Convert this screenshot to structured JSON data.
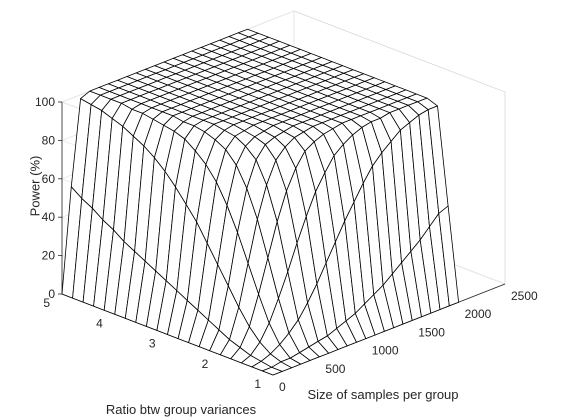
{
  "chart_data": {
    "type": "surface",
    "title": "",
    "xlabel": "Size of samples per group",
    "ylabel": "Ratio btw group variances",
    "zlabel": "Power (%)",
    "xlim": [
      0,
      2500
    ],
    "ylim": [
      1,
      5
    ],
    "zlim": [
      0,
      100
    ],
    "xticks": [
      "0",
      "500",
      "1000",
      "1500",
      "2000",
      "2500"
    ],
    "yticks": [
      "1",
      "2",
      "3",
      "4",
      "5"
    ],
    "zticks": [
      "0",
      "20",
      "40",
      "60",
      "80",
      "100"
    ],
    "grid": true,
    "surface_color": "#ffffff",
    "mesh_color": "#000000",
    "x": [
      0,
      100,
      200,
      300,
      400,
      500,
      600,
      700,
      800,
      900,
      1000,
      1100,
      1200,
      1300,
      1400,
      1500,
      1600,
      1700,
      1800,
      1900,
      2000
    ],
    "y": [
      1.0,
      1.2,
      1.4,
      1.6,
      1.8,
      2.0,
      2.2,
      2.4,
      2.6,
      2.8,
      3.0,
      3.2,
      3.4,
      3.6,
      3.8,
      4.0,
      4.2,
      4.4,
      4.6,
      4.8,
      5.0
    ],
    "z": [
      [
        0,
        0,
        0,
        0,
        0,
        0,
        0,
        0,
        0,
        0,
        0,
        0,
        0,
        0,
        0,
        0,
        0,
        0,
        0,
        0,
        0
      ],
      [
        0,
        0,
        1,
        1,
        2,
        3,
        4,
        5,
        7,
        9,
        11,
        14,
        17,
        20,
        24,
        28,
        32,
        36,
        41,
        46,
        48
      ],
      [
        0,
        1,
        3,
        6,
        10,
        15,
        22,
        30,
        39,
        48,
        57,
        65,
        73,
        80,
        85,
        89,
        93,
        95,
        97,
        98,
        98
      ],
      [
        0,
        2,
        7,
        15,
        26,
        38,
        51,
        63,
        74,
        82,
        89,
        93,
        96,
        98,
        99,
        99,
        100,
        100,
        100,
        100,
        100
      ],
      [
        0,
        4,
        13,
        28,
        45,
        62,
        76,
        86,
        93,
        96,
        98,
        99,
        100,
        100,
        100,
        100,
        100,
        100,
        100,
        100,
        100
      ],
      [
        0,
        6,
        21,
        42,
        63,
        79,
        90,
        95,
        98,
        99,
        100,
        100,
        100,
        100,
        100,
        100,
        100,
        100,
        100,
        100,
        100
      ],
      [
        0,
        9,
        30,
        56,
        77,
        90,
        96,
        98,
        99,
        100,
        100,
        100,
        100,
        100,
        100,
        100,
        100,
        100,
        100,
        100,
        100
      ],
      [
        0,
        12,
        39,
        68,
        87,
        95,
        98,
        99,
        100,
        100,
        100,
        100,
        100,
        100,
        100,
        100,
        100,
        100,
        100,
        100,
        100
      ],
      [
        0,
        15,
        48,
        78,
        93,
        98,
        99,
        100,
        100,
        100,
        100,
        100,
        100,
        100,
        100,
        100,
        100,
        100,
        100,
        100,
        100
      ],
      [
        0,
        18,
        57,
        85,
        96,
        99,
        100,
        100,
        100,
        100,
        100,
        100,
        100,
        100,
        100,
        100,
        100,
        100,
        100,
        100,
        100
      ],
      [
        0,
        21,
        64,
        90,
        98,
        100,
        100,
        100,
        100,
        100,
        100,
        100,
        100,
        100,
        100,
        100,
        100,
        100,
        100,
        100,
        100
      ],
      [
        0,
        24,
        71,
        94,
        99,
        100,
        100,
        100,
        100,
        100,
        100,
        100,
        100,
        100,
        100,
        100,
        100,
        100,
        100,
        100,
        100
      ],
      [
        0,
        27,
        77,
        96,
        99,
        100,
        100,
        100,
        100,
        100,
        100,
        100,
        100,
        100,
        100,
        100,
        100,
        100,
        100,
        100,
        100
      ],
      [
        0,
        30,
        82,
        97,
        100,
        100,
        100,
        100,
        100,
        100,
        100,
        100,
        100,
        100,
        100,
        100,
        100,
        100,
        100,
        100,
        100
      ],
      [
        0,
        33,
        86,
        98,
        100,
        100,
        100,
        100,
        100,
        100,
        100,
        100,
        100,
        100,
        100,
        100,
        100,
        100,
        100,
        100,
        100
      ],
      [
        0,
        36,
        89,
        99,
        100,
        100,
        100,
        100,
        100,
        100,
        100,
        100,
        100,
        100,
        100,
        100,
        100,
        100,
        100,
        100,
        100
      ],
      [
        0,
        40,
        92,
        99,
        100,
        100,
        100,
        100,
        100,
        100,
        100,
        100,
        100,
        100,
        100,
        100,
        100,
        100,
        100,
        100,
        100
      ],
      [
        0,
        43,
        94,
        100,
        100,
        100,
        100,
        100,
        100,
        100,
        100,
        100,
        100,
        100,
        100,
        100,
        100,
        100,
        100,
        100,
        100
      ],
      [
        0,
        47,
        96,
        100,
        100,
        100,
        100,
        100,
        100,
        100,
        100,
        100,
        100,
        100,
        100,
        100,
        100,
        100,
        100,
        100,
        100
      ],
      [
        0,
        50,
        97,
        100,
        100,
        100,
        100,
        100,
        100,
        100,
        100,
        100,
        100,
        100,
        100,
        100,
        100,
        100,
        100,
        100,
        100
      ],
      [
        0,
        54,
        98,
        100,
        100,
        100,
        100,
        100,
        100,
        100,
        100,
        100,
        100,
        100,
        100,
        100,
        100,
        100,
        100,
        100,
        100
      ]
    ]
  }
}
